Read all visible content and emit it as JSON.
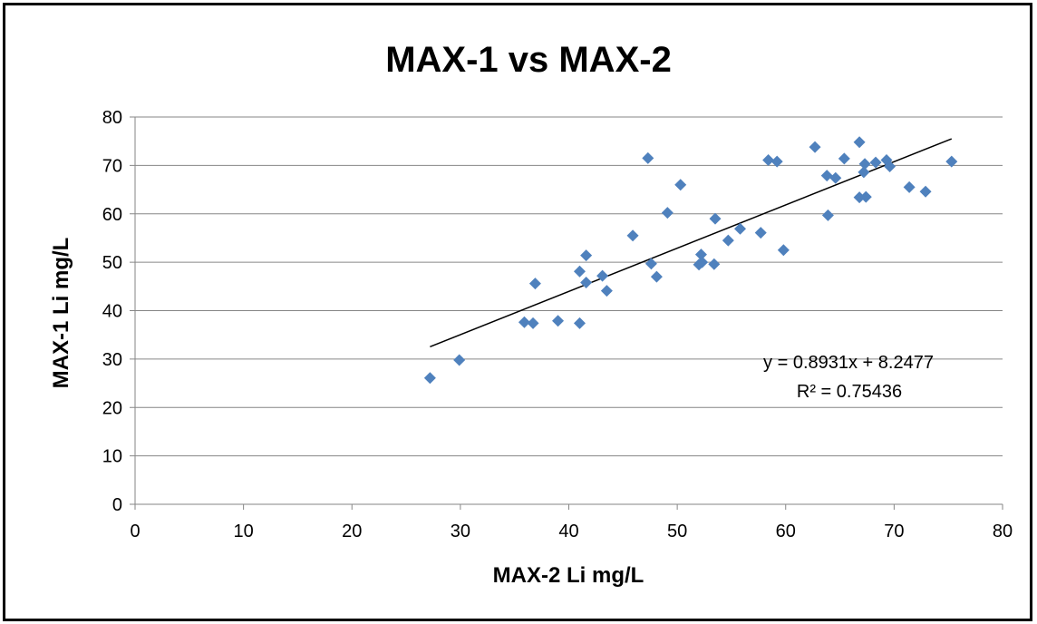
{
  "chart_data": {
    "type": "scatter",
    "title": "MAX-1  vs MAX-2",
    "xlabel": "MAX-2 Li mg/L",
    "ylabel": "MAX-1 Li mg/L",
    "xlim": [
      0,
      80
    ],
    "ylim": [
      0,
      80
    ],
    "xticks": [
      "0",
      "10",
      "20",
      "30",
      "40",
      "50",
      "60",
      "70",
      "80"
    ],
    "yticks": [
      "0",
      "10",
      "20",
      "30",
      "40",
      "50",
      "60",
      "70",
      "80"
    ],
    "grid": "horizontal",
    "marker_color": "#4F81BD",
    "trendline": {
      "type": "linear",
      "slope": 0.8931,
      "intercept": 8.2477,
      "x_range": [
        27.2,
        75.3
      ],
      "color": "#000000",
      "equation_label": "y = 0.8931x + 8.2477",
      "r2_label": "R² = 0.75436"
    },
    "points": [
      [
        27.2,
        26.1
      ],
      [
        29.9,
        29.8
      ],
      [
        35.9,
        37.6
      ],
      [
        36.7,
        37.4
      ],
      [
        36.9,
        45.6
      ],
      [
        39.0,
        37.9
      ],
      [
        41.0,
        37.4
      ],
      [
        41.0,
        48.1
      ],
      [
        41.6,
        51.4
      ],
      [
        41.6,
        45.8
      ],
      [
        43.1,
        47.2
      ],
      [
        43.5,
        44.1
      ],
      [
        45.9,
        55.5
      ],
      [
        47.3,
        71.5
      ],
      [
        47.6,
        49.7
      ],
      [
        48.1,
        47.0
      ],
      [
        49.1,
        60.2
      ],
      [
        50.3,
        66.0
      ],
      [
        52.0,
        49.5
      ],
      [
        52.2,
        51.6
      ],
      [
        52.3,
        50.0
      ],
      [
        53.4,
        49.6
      ],
      [
        53.5,
        59.0
      ],
      [
        54.7,
        54.5
      ],
      [
        55.8,
        56.9
      ],
      [
        57.7,
        56.1
      ],
      [
        58.4,
        71.1
      ],
      [
        59.2,
        70.8
      ],
      [
        59.8,
        52.5
      ],
      [
        62.7,
        73.8
      ],
      [
        63.8,
        67.9
      ],
      [
        63.9,
        59.7
      ],
      [
        64.6,
        67.4
      ],
      [
        65.4,
        71.4
      ],
      [
        66.8,
        74.8
      ],
      [
        66.8,
        63.4
      ],
      [
        67.2,
        68.6
      ],
      [
        67.3,
        70.3
      ],
      [
        67.4,
        63.5
      ],
      [
        68.3,
        70.6
      ],
      [
        69.3,
        71.1
      ],
      [
        69.6,
        69.8
      ],
      [
        71.4,
        65.5
      ],
      [
        72.9,
        64.6
      ],
      [
        75.3,
        70.8
      ]
    ]
  }
}
